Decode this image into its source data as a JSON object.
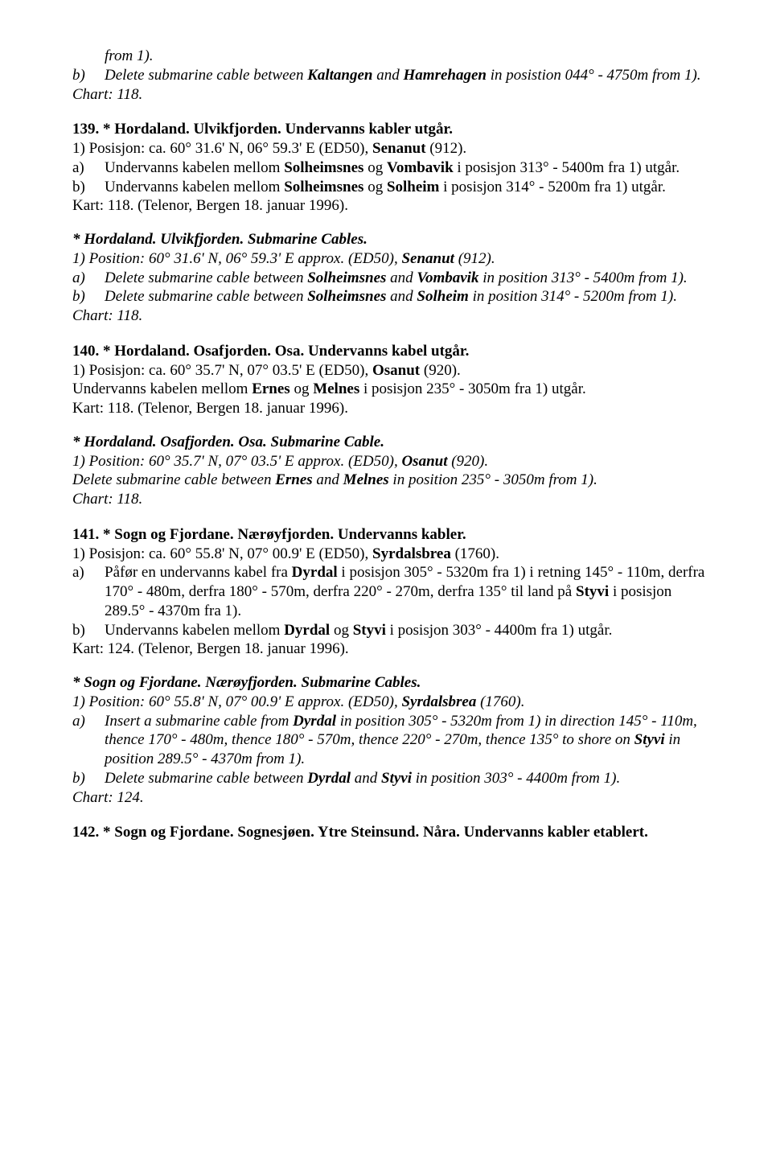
{
  "intro": {
    "from1": "from 1).",
    "b_label": "b)",
    "b_text_1": "Delete submarine cable between ",
    "b_k": "Kaltangen",
    "b_and": " and ",
    "b_h": "Hamrehagen",
    "b_text_2": " in posistion 044° - 4750m from 1).",
    "chart": "Chart: 118."
  },
  "s139": {
    "title_pre": "139. * Hordaland. Ulvikfjorden. Undervanns kabler utgår.",
    "pos_pre": "1) Posisjon: ca. 60° 31.6' N, 06° 59.3' E (ED50), ",
    "pos_place": "Senanut",
    "pos_post": " (912).",
    "a_label": "a)",
    "a_1": "Undervanns kabelen mellom ",
    "a_s": "Solheimsnes",
    "a_og": " og ",
    "a_v": "Vombavik",
    "a_2": " i posisjon 313° - 5400m fra 1) utgår.",
    "b_label": "b)",
    "b_1": "Undervanns kabelen mellom ",
    "b_s": "Solheimsnes",
    "b_og": " og ",
    "b_so": "Solheim",
    "b_2": " i posisjon 314° - 5200m fra 1) utgår.",
    "kart": "Kart: 118. (Telenor, Bergen 18. januar 1996).",
    "it_title": "* Hordaland. Ulvikfjorden. Submarine Cables.",
    "it_pos_pre": "1) Position: 60° 31.6' N, 06° 59.3' E approx. (ED50), ",
    "it_pos_place": "Senanut",
    "it_pos_post": " (912).",
    "it_a_label": "a)",
    "it_a_1": "Delete submarine cable between ",
    "it_a_s": "Solheimsnes",
    "it_a_and": " and ",
    "it_a_v": "Vombavik",
    "it_a_2": " in position 313° - 5400m from 1).",
    "it_b_label": "b)",
    "it_b_1": "Delete submarine cable between ",
    "it_b_s": "Solheimsnes",
    "it_b_and": " and ",
    "it_b_so": "Solheim",
    "it_b_2": " in position 314° - 5200m from 1).",
    "it_chart": "Chart: 118."
  },
  "s140": {
    "title": "140. * Hordaland. Osafjorden. Osa. Undervanns kabel utgår.",
    "pos_pre": "1) Posisjon: ca. 60° 35.7' N, 07° 03.5' E (ED50), ",
    "pos_place": "Osanut",
    "pos_post": " (920).",
    "l1_pre": "Undervanns kabelen mellom ",
    "l1_e": "Ernes",
    "l1_og": " og ",
    "l1_m": "Melnes",
    "l1_post": " i posisjon 235° - 3050m fra 1) utgår.",
    "kart": "Kart: 118. (Telenor, Bergen 18. januar 1996).",
    "it_title": "* Hordaland. Osafjorden. Osa. Submarine Cable.",
    "it_pos_pre": "1) Position: 60° 35.7' N, 07° 03.5' E approx. (ED50), ",
    "it_pos_place": "Osanut",
    "it_pos_post": " (920).",
    "it_l1_pre": "Delete submarine cable between ",
    "it_l1_e": "Ernes",
    "it_l1_and": " and ",
    "it_l1_m": "Melnes",
    "it_l1_post": " in position 235° - 3050m from 1).",
    "it_chart": "Chart: 118."
  },
  "s141": {
    "title": "141. * Sogn og Fjordane. Nærøyfjorden. Undervanns kabler.",
    "pos_pre": "1) Posisjon: ca. 60° 55.8' N, 07° 00.9' E (ED50), ",
    "pos_place": "Syrdalsbrea",
    "pos_post": " (1760).",
    "a_label": "a)",
    "a_1": "Påfør en undervanns kabel fra ",
    "a_d": "Dyrdal",
    "a_2": " i posisjon 305° - 5320m fra 1) i retning 145° - 110m, derfra 170° - 480m, derfra 180° - 570m, derfra 220° - 270m, derfra 135° til land på ",
    "a_s": "Styvi",
    "a_3": " i posisjon 289.5° - 4370m fra 1).",
    "b_label": "b)",
    "b_1": "Undervanns kabelen mellom ",
    "b_d": "Dyrdal",
    "b_og": " og ",
    "b_s": "Styvi",
    "b_2": " i posisjon 303° - 4400m fra 1) utgår.",
    "kart": "Kart: 124. (Telenor, Bergen 18. januar 1996).",
    "it_title": "* Sogn og Fjordane. Nærøyfjorden. Submarine Cables.",
    "it_pos_pre": "1) Position: 60° 55.8' N, 07° 00.9' E approx. (ED50), ",
    "it_pos_place": "Syrdalsbrea",
    "it_pos_post": " (1760).",
    "it_a_label": "a)",
    "it_a_1": "Insert a submarine cable from ",
    "it_a_d": "Dyrdal",
    "it_a_2": " in position 305° - 5320m from 1) in direction 145° - 110m, thence 170° - 480m, thence 180° - 570m, thence 220° - 270m, thence 135° to shore on ",
    "it_a_s": "Styvi",
    "it_a_3": " in position 289.5° - 4370m from 1).",
    "it_b_label": "b)",
    "it_b_1": "Delete submarine cable between ",
    "it_b_d": "Dyrdal",
    "it_b_and": " and ",
    "it_b_s": "Styvi",
    "it_b_2": " in position 303° - 4400m from 1).",
    "it_chart": "Chart: 124."
  },
  "s142": {
    "title": "142. * Sogn og Fjordane. Sognesjøen. Ytre Steinsund. Nåra. Undervanns kabler etablert."
  }
}
